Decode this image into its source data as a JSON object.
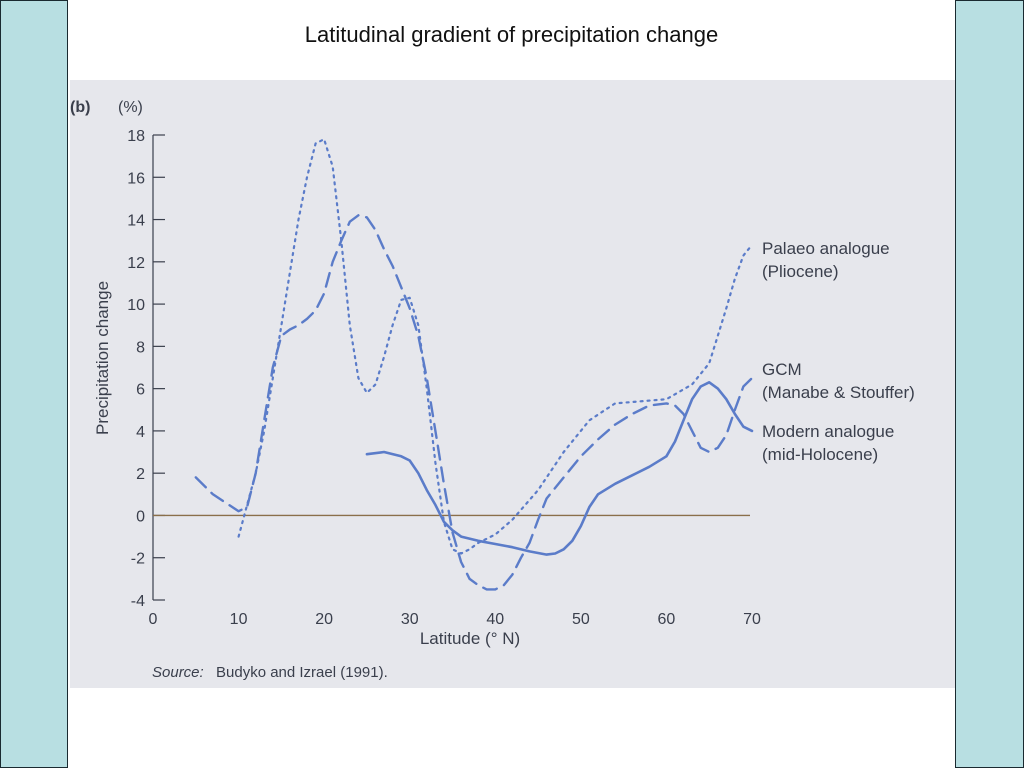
{
  "slide": {
    "title": "Latitudinal gradient of precipitation change"
  },
  "colors": {
    "side_bar": "#b8dfe2",
    "figure_bg": "#e6e7ec",
    "series": "#5b7cc9",
    "zero_line": "#8a6f4a",
    "text": "#3a3f4c"
  },
  "chart_data": {
    "type": "line",
    "panel_label": "(b)",
    "y_unit_label": "(%)",
    "xlabel": "Latitude (° N)",
    "ylabel": "Precipitation change",
    "xlim": [
      0,
      70
    ],
    "ylim": [
      -4,
      18
    ],
    "x_ticks": [
      "0",
      "10",
      "20",
      "30",
      "40",
      "50",
      "60",
      "70"
    ],
    "y_ticks": [
      "18",
      "16",
      "14",
      "12",
      "10",
      "8",
      "6",
      "4",
      "2",
      "0",
      "-2",
      "-4"
    ],
    "reference_line_y": 0,
    "source_prefix": "Source:",
    "source_text": "Budyko and Izrael (1991).",
    "series": [
      {
        "name": "Palaeo analogue (Pliocene)",
        "legend_lines": [
          "Palaeo analogue",
          "(Pliocene)"
        ],
        "style": "dotted",
        "points": [
          [
            10,
            -1
          ],
          [
            11,
            0.5
          ],
          [
            12,
            2
          ],
          [
            13,
            4
          ],
          [
            14,
            6.5
          ],
          [
            15,
            9
          ],
          [
            16,
            11.5
          ],
          [
            17,
            14
          ],
          [
            18,
            16
          ],
          [
            19,
            17.6
          ],
          [
            20,
            17.8
          ],
          [
            21,
            16.5
          ],
          [
            22,
            13
          ],
          [
            23,
            9
          ],
          [
            24,
            6.5
          ],
          [
            25,
            5.8
          ],
          [
            26,
            6.2
          ],
          [
            27,
            7.5
          ],
          [
            28,
            9
          ],
          [
            29,
            10.2
          ],
          [
            30,
            10.3
          ],
          [
            31,
            9
          ],
          [
            32,
            6
          ],
          [
            33,
            2.5
          ],
          [
            34,
            -0.3
          ],
          [
            35,
            -1.6
          ],
          [
            36,
            -1.8
          ],
          [
            37,
            -1.6
          ],
          [
            38,
            -1.3
          ],
          [
            40,
            -0.9
          ],
          [
            42,
            -0.2
          ],
          [
            45,
            1.2
          ],
          [
            48,
            3
          ],
          [
            51,
            4.5
          ],
          [
            54,
            5.3
          ],
          [
            57,
            5.4
          ],
          [
            60,
            5.5
          ],
          [
            63,
            6.2
          ],
          [
            65,
            7.2
          ],
          [
            66,
            8.5
          ],
          [
            67,
            9.8
          ],
          [
            68,
            11.2
          ],
          [
            69,
            12.3
          ],
          [
            70,
            12.8
          ]
        ]
      },
      {
        "name": "GCM (Manabe & Stouffer)",
        "legend_lines": [
          "GCM",
          "(Manabe & Stouffer)"
        ],
        "style": "dashed",
        "points": [
          [
            5,
            1.8
          ],
          [
            7,
            1
          ],
          [
            8.5,
            0.6
          ],
          [
            10,
            0.2
          ],
          [
            11,
            0.4
          ],
          [
            12,
            2
          ],
          [
            13,
            4.5
          ],
          [
            14,
            7
          ],
          [
            15,
            8.5
          ],
          [
            16,
            8.8
          ],
          [
            17,
            9
          ],
          [
            18,
            9.3
          ],
          [
            19,
            9.7
          ],
          [
            20,
            10.5
          ],
          [
            21,
            12
          ],
          [
            22,
            13
          ],
          [
            23,
            13.9
          ],
          [
            24,
            14.2
          ],
          [
            25,
            14.1
          ],
          [
            26,
            13.5
          ],
          [
            27,
            12.6
          ],
          [
            28,
            11.8
          ],
          [
            29,
            10.8
          ],
          [
            30,
            9.8
          ],
          [
            31,
            8.5
          ],
          [
            32,
            6.5
          ],
          [
            33,
            4
          ],
          [
            34,
            1.5
          ],
          [
            35,
            -0.8
          ],
          [
            36,
            -2.2
          ],
          [
            37,
            -3
          ],
          [
            38,
            -3.3
          ],
          [
            39,
            -3.5
          ],
          [
            40,
            -3.5
          ],
          [
            41,
            -3.3
          ],
          [
            42,
            -2.8
          ],
          [
            43,
            -2
          ],
          [
            44,
            -1.3
          ],
          [
            45,
            -0.2
          ],
          [
            46,
            0.8
          ],
          [
            48,
            1.8
          ],
          [
            50,
            2.8
          ],
          [
            52,
            3.6
          ],
          [
            54,
            4.3
          ],
          [
            56,
            4.8
          ],
          [
            58,
            5.2
          ],
          [
            60,
            5.3
          ],
          [
            61,
            5.2
          ],
          [
            62,
            4.8
          ],
          [
            63,
            4
          ],
          [
            64,
            3.2
          ],
          [
            65,
            3
          ],
          [
            66,
            3.2
          ],
          [
            67,
            3.8
          ],
          [
            68,
            5
          ],
          [
            69,
            6.1
          ],
          [
            70,
            6.5
          ]
        ]
      },
      {
        "name": "Modern analogue (mid-Holocene)",
        "legend_lines": [
          "Modern analogue",
          "(mid-Holocene)"
        ],
        "style": "solid",
        "points": [
          [
            25,
            2.9
          ],
          [
            27,
            3
          ],
          [
            29,
            2.8
          ],
          [
            30,
            2.6
          ],
          [
            31,
            2
          ],
          [
            32,
            1.2
          ],
          [
            33,
            0.5
          ],
          [
            34,
            -0.3
          ],
          [
            35,
            -0.7
          ],
          [
            36,
            -1
          ],
          [
            38,
            -1.2
          ],
          [
            40,
            -1.35
          ],
          [
            42,
            -1.5
          ],
          [
            44,
            -1.7
          ],
          [
            46,
            -1.85
          ],
          [
            47,
            -1.8
          ],
          [
            48,
            -1.6
          ],
          [
            49,
            -1.2
          ],
          [
            50,
            -0.5
          ],
          [
            51,
            0.4
          ],
          [
            52,
            1
          ],
          [
            54,
            1.5
          ],
          [
            56,
            1.9
          ],
          [
            58,
            2.3
          ],
          [
            60,
            2.8
          ],
          [
            61,
            3.5
          ],
          [
            62,
            4.5
          ],
          [
            63,
            5.5
          ],
          [
            64,
            6.1
          ],
          [
            65,
            6.3
          ],
          [
            66,
            6
          ],
          [
            67,
            5.5
          ],
          [
            68,
            4.8
          ],
          [
            69,
            4.2
          ],
          [
            70,
            4
          ]
        ]
      }
    ]
  }
}
